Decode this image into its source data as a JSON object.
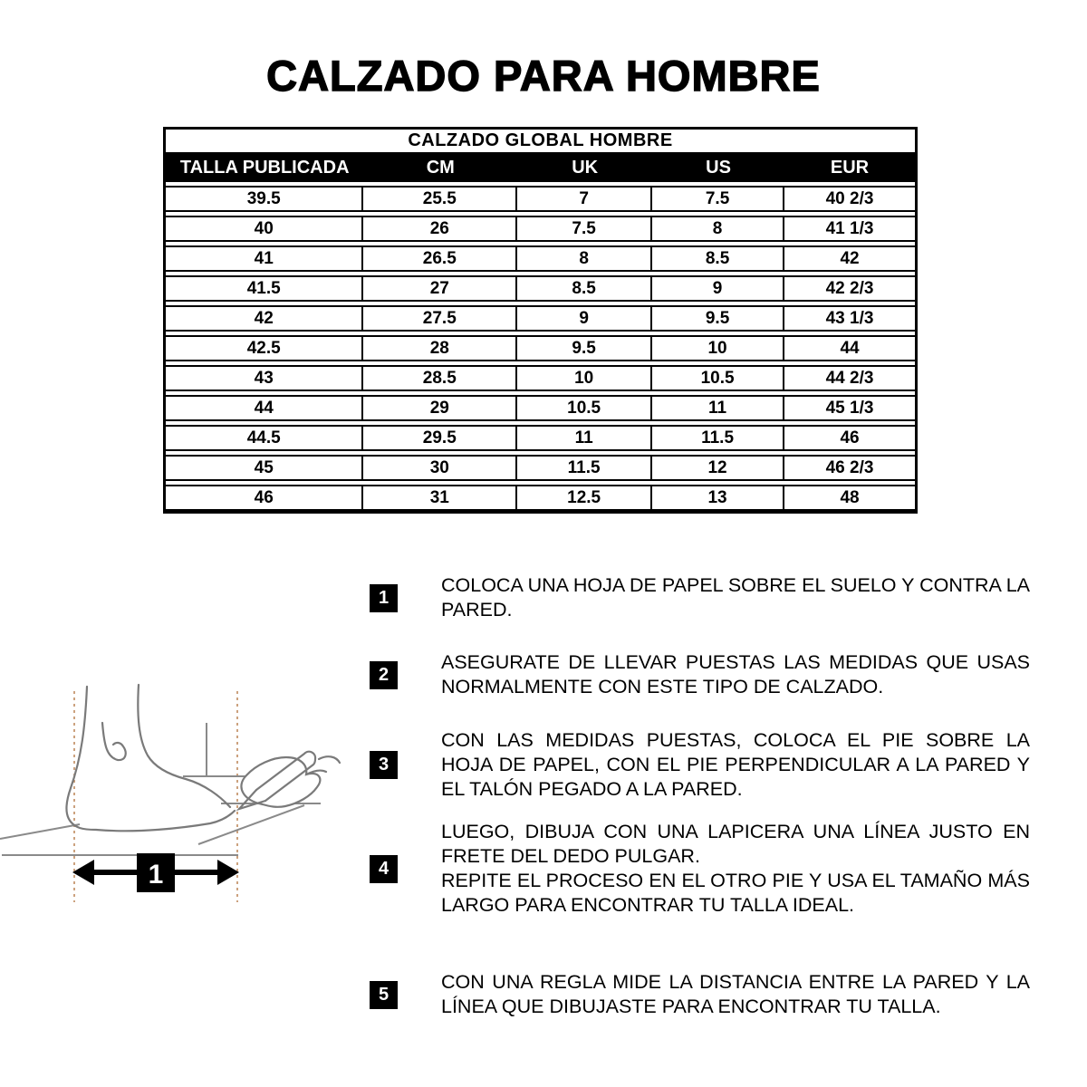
{
  "page": {
    "title": "CALZADO PARA HOMBRE"
  },
  "size_table": {
    "caption": "CALZADO GLOBAL HOMBRE",
    "headers": [
      "TALLA PUBLICADA",
      "CM",
      "UK",
      "US",
      "EUR"
    ],
    "rows": [
      [
        "39.5",
        "25.5",
        "7",
        "7.5",
        "40 2/3"
      ],
      [
        "40",
        "26",
        "7.5",
        "8",
        "41 1/3"
      ],
      [
        "41",
        "26.5",
        "8",
        "8.5",
        "42"
      ],
      [
        "41.5",
        "27",
        "8.5",
        "9",
        "42 2/3"
      ],
      [
        "42",
        "27.5",
        "9",
        "9.5",
        "43 1/3"
      ],
      [
        "42.5",
        "28",
        "9.5",
        "10",
        "44"
      ],
      [
        "43",
        "28.5",
        "10",
        "10.5",
        "44 2/3"
      ],
      [
        "44",
        "29",
        "10.5",
        "11",
        "45 1/3"
      ],
      [
        "44.5",
        "29.5",
        "11",
        "11.5",
        "46"
      ],
      [
        "45",
        "30",
        "11.5",
        "12",
        "46 2/3"
      ],
      [
        "46",
        "31",
        "12.5",
        "13",
        "48"
      ]
    ]
  },
  "instructions": {
    "steps": [
      {
        "num": "1",
        "lines": [
          "COLOCA UNA HOJA DE PAPEL SOBRE EL SUELO Y CONTRA LA PARED."
        ]
      },
      {
        "num": "2",
        "lines": [
          "ASEGURATE DE LLEVAR PUESTAS LAS MEDIDAS QUE USAS NORMALMENTE CON ESTE TIPO DE CALZADO."
        ]
      },
      {
        "num": "3",
        "lines": [
          "CON LAS MEDIDAS PUESTAS, COLOCA EL PIE SOBRE LA HOJA DE PAPEL, CON EL PIE PERPENDICULAR A LA PARED Y EL TALÓN PEGADO A LA PARED."
        ]
      },
      {
        "num": "4",
        "lines": [
          "LUEGO, DIBUJA CON UNA LAPICERA UNA LÍNEA JUSTO EN FRETE DEL DEDO PULGAR.",
          "REPITE EL PROCESO EN EL OTRO PIE Y USA EL TAMAÑO MÁS LARGO PARA ENCONTRAR TU TALLA IDEAL."
        ]
      },
      {
        "num": "5",
        "lines": [
          "CON UNA REGLA MIDE LA DISTANCIA ENTRE LA PARED Y LA LÍNEA QUE DIBUJASTE PARA ENCONTRAR TU TALLA."
        ]
      }
    ]
  },
  "illustration": {
    "measure_label": "1"
  },
  "colors": {
    "table_header_bg": "#000000",
    "guide_dash": "#bf8a5e",
    "sketch_gray": "#7a7a7a"
  }
}
